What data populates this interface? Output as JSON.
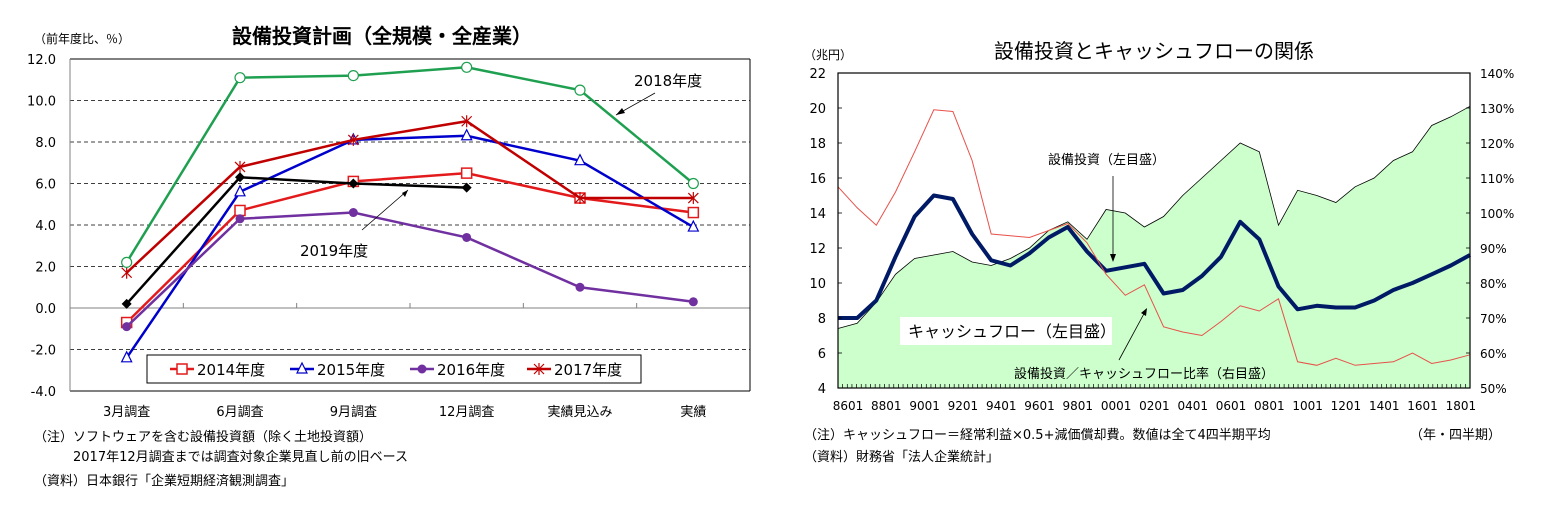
{
  "chart_data": [
    {
      "type": "line",
      "title": "設備投資計画（全規模・全産業）",
      "ylabel": "（前年度比、％）",
      "xlabel": "",
      "categories": [
        "3月調査",
        "6月調査",
        "9月調査",
        "12月調査",
        "実績見込み",
        "実績"
      ],
      "ylim": [
        -4.0,
        12.0
      ],
      "yticks": [
        "12.0",
        "10.0",
        "8.0",
        "6.0",
        "4.0",
        "2.0",
        "0.0",
        "-2.0",
        "-4.0"
      ],
      "ytick_values": [
        12,
        10,
        8,
        6,
        4,
        2,
        0,
        -2,
        -4
      ],
      "grid": "dashed horizontal",
      "legend_position": "bottom",
      "series": [
        {
          "name": "2014年度",
          "color": "#e31a1c",
          "marker": "square-open",
          "in_legend": true,
          "values": [
            -0.7,
            4.7,
            6.1,
            6.5,
            5.3,
            4.6
          ]
        },
        {
          "name": "2015年度",
          "color": "#0000cc",
          "marker": "triangle-open",
          "in_legend": true,
          "values": [
            -2.4,
            5.6,
            8.1,
            8.3,
            7.1,
            3.9
          ]
        },
        {
          "name": "2016年度",
          "color": "#7030a0",
          "marker": "circle-filled",
          "in_legend": true,
          "values": [
            -0.9,
            4.3,
            4.6,
            3.4,
            1.0,
            0.3
          ]
        },
        {
          "name": "2017年度",
          "color": "#c00000",
          "marker": "x",
          "in_legend": true,
          "values": [
            1.7,
            6.8,
            8.1,
            9.0,
            5.3,
            5.3
          ]
        },
        {
          "name": "2018年度",
          "color": "#1fa050",
          "marker": "circle-open",
          "in_legend": false,
          "values": [
            2.2,
            11.1,
            11.2,
            11.6,
            10.5,
            6.0
          ]
        },
        {
          "name": "2019年度",
          "color": "#000000",
          "marker": "diamond-filled",
          "in_legend": false,
          "values": [
            0.2,
            6.3,
            6.0,
            5.8,
            null,
            null
          ]
        }
      ],
      "annotations": [
        {
          "text": "2018年度",
          "target_series": "2018年度"
        },
        {
          "text": "2019年度",
          "target_series": "2019年度"
        }
      ]
    },
    {
      "type": "area",
      "title": "設備投資とキャッシュフローの関係",
      "ylabel": "（兆円）",
      "y2label": "",
      "xlabel": "（年・四半期）",
      "x": [
        "8601",
        "8701",
        "8801",
        "8901",
        "9001",
        "9101",
        "9201",
        "9301",
        "9401",
        "9501",
        "9601",
        "9701",
        "9801",
        "9901",
        "0001",
        "0101",
        "0201",
        "0301",
        "0401",
        "0501",
        "0601",
        "0701",
        "0801",
        "0901",
        "1001",
        "1101",
        "1201",
        "1301",
        "1401",
        "1501",
        "1601",
        "1701",
        "1801",
        "1901"
      ],
      "xticks": [
        "8601",
        "8801",
        "9001",
        "9201",
        "9401",
        "9601",
        "9801",
        "0001",
        "0201",
        "0401",
        "0601",
        "0801",
        "1001",
        "1201",
        "1401",
        "1601",
        "1801"
      ],
      "ylim": [
        4,
        22
      ],
      "yticks": [
        "22",
        "20",
        "18",
        "16",
        "14",
        "12",
        "10",
        "8",
        "6",
        "4"
      ],
      "ytick_values": [
        22,
        20,
        18,
        16,
        14,
        12,
        10,
        8,
        6,
        4
      ],
      "y2lim": [
        50,
        140
      ],
      "y2ticks": [
        "140%",
        "130%",
        "120%",
        "110%",
        "100%",
        "90%",
        "80%",
        "70%",
        "60%",
        "50%"
      ],
      "y2tick_values": [
        140,
        130,
        120,
        110,
        100,
        90,
        80,
        70,
        60,
        50
      ],
      "grid": false,
      "series": [
        {
          "name": "キャッシュフロー（左目盛）",
          "axis": "left",
          "style": "area",
          "fill": "#ccffcc",
          "stroke": "#000000",
          "values": [
            7.4,
            7.7,
            8.9,
            10.5,
            11.4,
            11.6,
            11.8,
            11.2,
            11.0,
            11.4,
            12.0,
            13.0,
            13.5,
            12.5,
            14.2,
            14.0,
            13.2,
            13.8,
            15.0,
            16.0,
            17.0,
            18.0,
            17.5,
            13.3,
            15.3,
            15.0,
            14.6,
            15.5,
            16.0,
            17.0,
            17.5,
            19.0,
            19.5,
            20.1
          ]
        },
        {
          "name": "設備投資（左目盛）",
          "axis": "left",
          "style": "line-thick",
          "stroke": "#001a66",
          "values": [
            8.0,
            8.0,
            9.0,
            11.5,
            13.8,
            15.0,
            14.8,
            12.8,
            11.3,
            11.0,
            11.7,
            12.6,
            13.2,
            11.8,
            10.7,
            10.9,
            11.1,
            9.4,
            9.6,
            10.4,
            11.5,
            13.5,
            12.5,
            9.8,
            8.5,
            8.7,
            8.6,
            8.6,
            9.0,
            9.6,
            10.0,
            10.5,
            11.0,
            11.6
          ]
        },
        {
          "name": "設備投資／キャッシュフロー比率（右目盛）",
          "axis": "right",
          "style": "line-thin",
          "stroke": "#e8504a",
          "values": [
            107.5,
            101.5,
            96.5,
            106,
            117.5,
            129.5,
            129,
            115,
            94,
            93.5,
            93,
            95,
            97,
            91.5,
            82.5,
            76.5,
            79.5,
            67.5,
            66,
            65,
            69,
            73.5,
            72,
            75.5,
            57.5,
            56.5,
            58.5,
            56.5,
            57,
            57.5,
            60,
            57,
            58,
            59.5
          ]
        }
      ],
      "annotations": [
        {
          "text": "設備投資（左目盛）"
        },
        {
          "text": "キャッシュフロー（左目盛）"
        },
        {
          "text": "設備投資／キャッシュフロー比率（右目盛）"
        }
      ]
    }
  ],
  "left_panel": {
    "title": "設備投資計画（全規模・全産業）",
    "unit": "（前年度比、％）",
    "label_2018": "2018年度",
    "label_2019": "2019年度",
    "notes": [
      "（注）ソフトウェアを含む設備投資額（除く土地投資額）",
      "　　　2017年12月調査までは調査対象企業見直し前の旧ベース",
      "（資料）日本銀行「企業短期経済観測調査」"
    ]
  },
  "right_panel": {
    "title": "設備投資とキャッシュフローの関係",
    "unit": "（兆円）",
    "label_capex": "設備投資（左目盛）",
    "label_cf": "キャッシュフロー（左目盛）",
    "label_ratio": "設備投資／キャッシュフロー比率（右目盛）",
    "period_label": "（年・四半期）",
    "notes": [
      "（注）キャッシュフロー＝経常利益×0.5+減価償却費。数値は全て4四半期平均",
      "（資料）財務省「法人企業統計」"
    ]
  }
}
